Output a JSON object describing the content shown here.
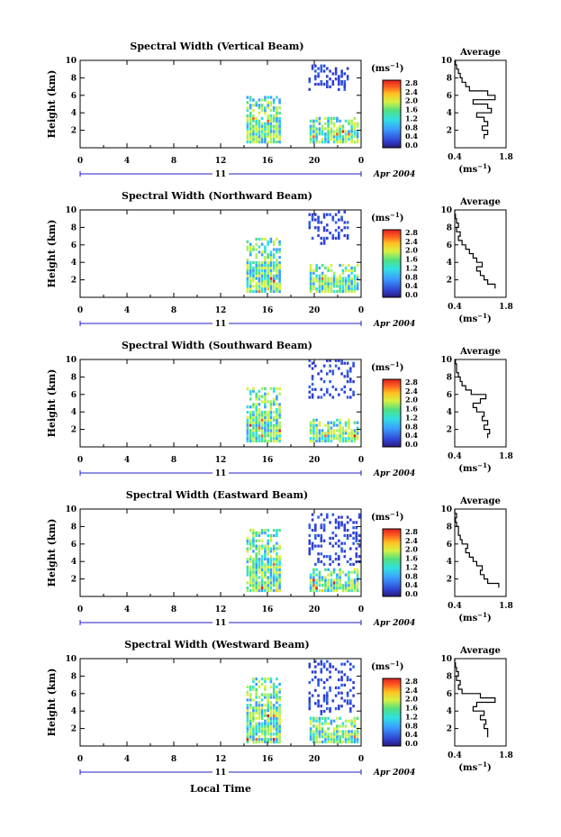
{
  "figure": {
    "xlabel_common": "Local Time",
    "date_label": "Apr 2004",
    "day_label": "11",
    "unit_label": "(ms",
    "unit_exp": "−1",
    "avg_title": "Average",
    "avg_xlabel": "(ms",
    "avg_xlabel_exp": "−1"
  },
  "chart_data": [
    {
      "type": "heatmap",
      "title": "Spectral Width (Vertical Beam)",
      "ylabel": "Height (km)",
      "xlim": [
        0,
        24
      ],
      "ylim": [
        0,
        10
      ],
      "xticks": [
        "0",
        "4",
        "8",
        "12",
        "16",
        "20",
        "0"
      ],
      "yticks": [
        "2",
        "4",
        "6",
        "8",
        "10"
      ],
      "colorbar_ticks": [
        "0.0",
        "0.4",
        "0.8",
        "1.2",
        "1.6",
        "2.0",
        "2.4",
        "2.8"
      ],
      "data_blocks": [
        {
          "x": [
            14.2,
            17
          ],
          "y": [
            0.5,
            5.8
          ],
          "level": "mixed"
        },
        {
          "x": [
            19.6,
            23.8
          ],
          "y": [
            0.5,
            3.2
          ],
          "level": "mixed"
        },
        {
          "x": [
            19.5,
            23
          ],
          "y": [
            6.5,
            9.5
          ],
          "level": "sparse-low"
        }
      ],
      "average": {
        "x_range": [
          0.4,
          1.8
        ],
        "xticks": [
          "0.4",
          "1.8"
        ],
        "yticks": [
          "2",
          "4",
          "6",
          "8",
          "10"
        ],
        "heights": [
          1,
          1.5,
          2,
          2.5,
          3,
          3.5,
          4,
          4.5,
          5,
          5.5,
          6,
          6.5,
          7,
          7.5,
          8,
          8.5,
          9,
          9.5,
          10
        ],
        "values": [
          1.2,
          1.3,
          1.15,
          1.3,
          1.2,
          1.0,
          1.4,
          1.3,
          0.9,
          1.5,
          1.3,
          0.8,
          0.7,
          0.6,
          0.55,
          0.5,
          0.45,
          0.42,
          0.4
        ]
      }
    },
    {
      "type": "heatmap",
      "title": "Spectral Width (Northward Beam)",
      "ylabel": "Height (km)",
      "xlim": [
        0,
        24
      ],
      "ylim": [
        0,
        10
      ],
      "xticks": [
        "0",
        "4",
        "8",
        "12",
        "16",
        "20",
        "0"
      ],
      "yticks": [
        "2",
        "4",
        "6",
        "8",
        "10"
      ],
      "colorbar_ticks": [
        "0.0",
        "0.4",
        "0.8",
        "1.2",
        "1.6",
        "2.0",
        "2.4",
        "2.8"
      ],
      "data_blocks": [
        {
          "x": [
            14.2,
            17
          ],
          "y": [
            0.5,
            6.5
          ],
          "level": "mixed"
        },
        {
          "x": [
            19.6,
            23.8
          ],
          "y": [
            0.5,
            3.5
          ],
          "level": "mixed"
        },
        {
          "x": [
            19.5,
            23
          ],
          "y": [
            6.0,
            9.8
          ],
          "level": "sparse-low"
        }
      ],
      "average": {
        "x_range": [
          0.4,
          1.8
        ],
        "xticks": [
          "0.4",
          "1.8"
        ],
        "yticks": [
          "2",
          "4",
          "6",
          "8",
          "10"
        ],
        "heights": [
          1,
          1.5,
          2,
          2.5,
          3,
          3.5,
          4,
          4.5,
          5,
          5.5,
          6,
          6.5,
          7,
          7.5,
          8,
          8.5,
          9,
          9.5,
          10
        ],
        "values": [
          1.5,
          1.3,
          1.2,
          1.1,
          1.0,
          1.15,
          1.0,
          0.9,
          0.8,
          0.7,
          0.6,
          0.5,
          0.55,
          0.45,
          0.5,
          0.45,
          0.42,
          0.4,
          0.4
        ]
      }
    },
    {
      "type": "heatmap",
      "title": "Spectral Width (Southward Beam)",
      "ylabel": "Height (km)",
      "xlim": [
        0,
        24
      ],
      "ylim": [
        0,
        10
      ],
      "xticks": [
        "0",
        "4",
        "8",
        "12",
        "16",
        "20",
        "0"
      ],
      "yticks": [
        "2",
        "4",
        "6",
        "8",
        "10"
      ],
      "colorbar_ticks": [
        "0.0",
        "0.4",
        "0.8",
        "1.2",
        "1.6",
        "2.0",
        "2.4",
        "2.8"
      ],
      "data_blocks": [
        {
          "x": [
            14.2,
            17
          ],
          "y": [
            0.5,
            6.5
          ],
          "level": "mixed"
        },
        {
          "x": [
            19.6,
            23.8
          ],
          "y": [
            0.5,
            3.0
          ],
          "level": "mixed"
        },
        {
          "x": [
            19.5,
            23.5
          ],
          "y": [
            5.5,
            9.8
          ],
          "level": "sparse-low"
        }
      ],
      "average": {
        "x_range": [
          0.4,
          1.8
        ],
        "xticks": [
          "0.4",
          "1.8"
        ],
        "yticks": [
          "2",
          "4",
          "6",
          "8",
          "10"
        ],
        "heights": [
          1,
          1.5,
          2,
          2.5,
          3,
          3.5,
          4,
          4.5,
          5,
          5.5,
          6,
          6.5,
          7,
          7.5,
          8,
          8.5,
          9,
          9.5,
          10
        ],
        "values": [
          1.3,
          1.35,
          1.2,
          1.3,
          1.15,
          1.2,
          1.0,
          0.9,
          1.1,
          1.25,
          0.85,
          0.7,
          0.6,
          0.55,
          0.5,
          0.45,
          0.45,
          0.42,
          0.4
        ]
      }
    },
    {
      "type": "heatmap",
      "title": "Spectral Width (Eastward Beam)",
      "ylabel": "Height (km)",
      "xlim": [
        0,
        24
      ],
      "ylim": [
        0,
        10
      ],
      "xticks": [
        "0",
        "4",
        "8",
        "12",
        "16",
        "20",
        "0"
      ],
      "yticks": [
        "2",
        "4",
        "6",
        "8",
        "10"
      ],
      "colorbar_ticks": [
        "0.0",
        "0.4",
        "0.8",
        "1.2",
        "1.6",
        "2.0",
        "2.4",
        "2.8"
      ],
      "data_blocks": [
        {
          "x": [
            14.2,
            17
          ],
          "y": [
            0.5,
            7.5
          ],
          "level": "mixed"
        },
        {
          "x": [
            19.6,
            23.8
          ],
          "y": [
            0.5,
            3.0
          ],
          "level": "mixed"
        },
        {
          "x": [
            19.5,
            24
          ],
          "y": [
            3.5,
            9.5
          ],
          "level": "sparse-low"
        }
      ],
      "average": {
        "x_range": [
          0.4,
          1.8
        ],
        "xticks": [
          "0.4",
          "1.8"
        ],
        "yticks": [
          "2",
          "4",
          "6",
          "8",
          "10"
        ],
        "heights": [
          1,
          1.5,
          2,
          2.5,
          3,
          3.5,
          4,
          4.5,
          5,
          5.5,
          6,
          6.5,
          7,
          7.5,
          8,
          8.5,
          9,
          9.5,
          10
        ],
        "values": [
          1.6,
          1.3,
          1.2,
          1.1,
          1.15,
          1.0,
          0.9,
          0.8,
          0.7,
          0.75,
          0.6,
          0.55,
          0.5,
          0.5,
          0.45,
          0.42,
          0.45,
          0.4,
          0.4
        ]
      }
    },
    {
      "type": "heatmap",
      "title": "Spectral Width (Westward Beam)",
      "ylabel": "Height (km)",
      "xlabel": "Local Time",
      "xlim": [
        0,
        24
      ],
      "ylim": [
        0,
        10
      ],
      "xticks": [
        "0",
        "4",
        "8",
        "12",
        "16",
        "20",
        "0"
      ],
      "yticks": [
        "2",
        "4",
        "6",
        "8",
        "10"
      ],
      "colorbar_ticks": [
        "0.0",
        "0.4",
        "0.8",
        "1.2",
        "1.6",
        "2.0",
        "2.4",
        "2.8"
      ],
      "data_blocks": [
        {
          "x": [
            14.2,
            17
          ],
          "y": [
            0.3,
            7.5
          ],
          "level": "mixed"
        },
        {
          "x": [
            19.6,
            23.8
          ],
          "y": [
            0.3,
            3.0
          ],
          "level": "mixed"
        },
        {
          "x": [
            19.5,
            23.5
          ],
          "y": [
            3.5,
            9.8
          ],
          "level": "sparse-low"
        }
      ],
      "average": {
        "x_range": [
          0.4,
          1.8
        ],
        "xticks": [
          "0.4",
          "1.8"
        ],
        "yticks": [
          "2",
          "4",
          "6",
          "8",
          "10"
        ],
        "heights": [
          1,
          1.5,
          2,
          2.5,
          3,
          3.5,
          4,
          4.5,
          5,
          5.5,
          6,
          6.5,
          7,
          7.5,
          8,
          8.5,
          9,
          9.5,
          10
        ],
        "values": [
          1.3,
          1.3,
          1.2,
          1.25,
          1.1,
          1.2,
          0.9,
          1.0,
          1.5,
          1.1,
          0.6,
          0.5,
          0.55,
          0.45,
          0.5,
          0.45,
          0.42,
          0.4,
          0.4
        ]
      }
    }
  ]
}
